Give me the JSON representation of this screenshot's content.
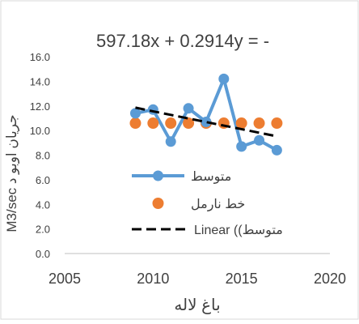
{
  "chart_data": {
    "type": "line",
    "title": "597.18x + 0.2914y = -",
    "xlabel": "باغ لاله",
    "ylabel": "M3/sec جریان اوبو د",
    "xlim": [
      2005,
      2020
    ],
    "ylim": [
      0,
      16
    ],
    "x_ticks": [
      "2005",
      "2010",
      "2015",
      "2020"
    ],
    "y_ticks": [
      "0.0",
      "2.0",
      "4.0",
      "6.0",
      "8.0",
      "10.0",
      "12.0",
      "14.0",
      "16.0"
    ],
    "x": [
      2009,
      2010,
      2011,
      2012,
      2013,
      2014,
      2015,
      2016,
      2017
    ],
    "series": [
      {
        "name": "متوسط",
        "values": [
          11.4,
          11.7,
          9.1,
          11.8,
          10.7,
          14.2,
          8.7,
          9.2,
          8.4
        ],
        "color": "#5b9bd5",
        "style": "line-marker"
      },
      {
        "name": "خط نارمل",
        "values": [
          10.6,
          10.6,
          10.6,
          10.6,
          10.6,
          10.6,
          10.6,
          10.6,
          10.6
        ],
        "color": "#ed7d31",
        "style": "marker"
      },
      {
        "name": "Linear (متوسط)",
        "values": [
          11.86,
          11.56,
          11.27,
          10.98,
          10.69,
          10.4,
          10.11,
          9.82,
          9.53
        ],
        "color": "#000000",
        "style": "dashed"
      }
    ],
    "legend": {
      "placement": "inside-bottom-right",
      "entries": [
        "متوسط",
        "خط نارمل",
        "Linear ((متوسط"
      ]
    },
    "grid": false,
    "colors": {
      "axis": "#bfbfbf",
      "text": "#404040",
      "border": "#d9d9d9"
    }
  }
}
